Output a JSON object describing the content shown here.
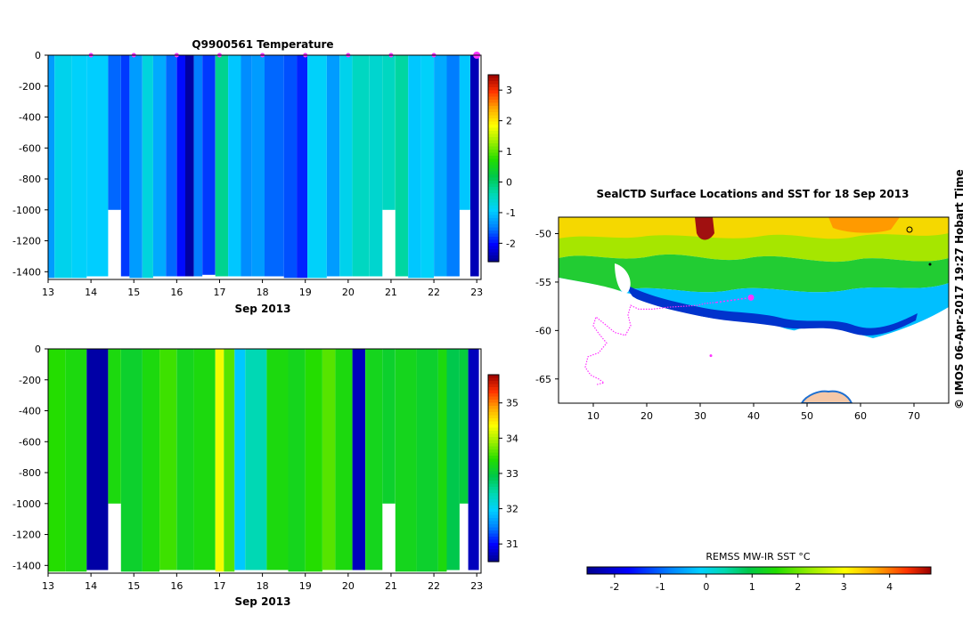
{
  "colors": {
    "colormap": [
      "#00008f",
      "#0000ff",
      "#0080ff",
      "#00d0ff",
      "#00d9b0",
      "#00c84a",
      "#22dd00",
      "#99ee00",
      "#ffff00",
      "#ffaa00",
      "#ff3300",
      "#990000"
    ],
    "land": "#f5c8a8",
    "track": "#ff33ff",
    "missing": "#ffffff"
  },
  "chart_data": [
    {
      "id": "temperature-section",
      "type": "heatmap",
      "title": "Q9900561  Temperature",
      "xlabel": "Sep 2013",
      "ylabel": "",
      "x_ticks": [
        "13",
        "14",
        "15",
        "16",
        "17",
        "18",
        "19",
        "20",
        "21",
        "22",
        "23"
      ],
      "xlim": [
        13.0,
        23.1
      ],
      "ylim": [
        -1450,
        0
      ],
      "y_ticks": [
        0,
        -200,
        -400,
        -600,
        -800,
        -1000,
        -1200,
        -1400
      ],
      "colorbar": {
        "min": -2.6,
        "max": 3.5,
        "ticks": [
          3,
          2,
          1,
          0,
          -1,
          -2
        ]
      },
      "profile_markers_x": [
        14.0,
        15.0,
        16.0,
        17.0,
        18.0,
        19.0,
        20.0,
        21.0,
        22.0,
        23.0
      ],
      "profiles": [
        {
          "x0": 13.0,
          "x1": 13.15,
          "value": -1.3,
          "bottom": -1440
        },
        {
          "x0": 13.15,
          "x1": 13.55,
          "value": -0.8,
          "bottom": -1440
        },
        {
          "x0": 13.55,
          "x1": 13.9,
          "value": -0.9,
          "bottom": -1440
        },
        {
          "x0": 13.9,
          "x1": 14.4,
          "value": -0.95,
          "bottom": -1430
        },
        {
          "x0": 14.4,
          "x1": 14.7,
          "value": -1.6,
          "bottom": -1000
        },
        {
          "x0": 14.7,
          "x1": 14.9,
          "value": -1.8,
          "bottom": -1430
        },
        {
          "x0": 14.9,
          "x1": 15.2,
          "value": -1.3,
          "bottom": -1440
        },
        {
          "x0": 15.2,
          "x1": 15.45,
          "value": -0.7,
          "bottom": -1440
        },
        {
          "x0": 15.45,
          "x1": 15.75,
          "value": -1.2,
          "bottom": -1430
        },
        {
          "x0": 15.75,
          "x1": 16.0,
          "value": -1.6,
          "bottom": -1430
        },
        {
          "x0": 16.0,
          "x1": 16.2,
          "value": -2.0,
          "bottom": -1430
        },
        {
          "x0": 16.2,
          "x1": 16.4,
          "value": -2.5,
          "bottom": -1430
        },
        {
          "x0": 16.4,
          "x1": 16.6,
          "value": -1.5,
          "bottom": -1430
        },
        {
          "x0": 16.6,
          "x1": 16.9,
          "value": -1.8,
          "bottom": -1420
        },
        {
          "x0": 16.9,
          "x1": 17.2,
          "value": -0.2,
          "bottom": -1430
        },
        {
          "x0": 17.2,
          "x1": 17.5,
          "value": -1.0,
          "bottom": -1430
        },
        {
          "x0": 17.5,
          "x1": 17.75,
          "value": -1.4,
          "bottom": -1430
        },
        {
          "x0": 17.75,
          "x1": 18.05,
          "value": -1.3,
          "bottom": -1430
        },
        {
          "x0": 18.05,
          "x1": 18.5,
          "value": -1.6,
          "bottom": -1430
        },
        {
          "x0": 18.5,
          "x1": 18.8,
          "value": -1.7,
          "bottom": -1440
        },
        {
          "x0": 18.8,
          "x1": 19.05,
          "value": -1.9,
          "bottom": -1440
        },
        {
          "x0": 19.05,
          "x1": 19.5,
          "value": -0.9,
          "bottom": -1440
        },
        {
          "x0": 19.5,
          "x1": 19.8,
          "value": -1.3,
          "bottom": -1430
        },
        {
          "x0": 19.8,
          "x1": 20.1,
          "value": -0.8,
          "bottom": -1430
        },
        {
          "x0": 20.1,
          "x1": 20.5,
          "value": -0.5,
          "bottom": -1430
        },
        {
          "x0": 20.5,
          "x1": 20.8,
          "value": -0.6,
          "bottom": -1430
        },
        {
          "x0": 20.8,
          "x1": 21.1,
          "value": -0.5,
          "bottom": -1000
        },
        {
          "x0": 21.1,
          "x1": 21.4,
          "value": -0.3,
          "bottom": -1430
        },
        {
          "x0": 21.4,
          "x1": 21.7,
          "value": -1.0,
          "bottom": -1440
        },
        {
          "x0": 21.7,
          "x1": 22.0,
          "value": -0.9,
          "bottom": -1440
        },
        {
          "x0": 22.0,
          "x1": 22.3,
          "value": -1.2,
          "bottom": -1430
        },
        {
          "x0": 22.3,
          "x1": 22.6,
          "value": -1.5,
          "bottom": -1430
        },
        {
          "x0": 22.6,
          "x1": 22.85,
          "value": -1.0,
          "bottom": -1000
        },
        {
          "x0": 22.85,
          "x1": 23.05,
          "value": -2.4,
          "bottom": -1430
        }
      ]
    },
    {
      "id": "salinity-section",
      "type": "heatmap",
      "title": "",
      "xlabel": "Sep 2013",
      "ylabel": "",
      "x_ticks": [
        "13",
        "14",
        "15",
        "16",
        "17",
        "18",
        "19",
        "20",
        "21",
        "22",
        "23"
      ],
      "xlim": [
        13.0,
        23.1
      ],
      "ylim": [
        -1450,
        0
      ],
      "y_ticks": [
        0,
        -200,
        -400,
        -600,
        -800,
        -1000,
        -1200,
        -1400
      ],
      "colorbar": {
        "min": 30.5,
        "max": 35.8,
        "ticks": [
          35,
          34,
          33,
          32,
          31
        ]
      },
      "profiles": [
        {
          "x0": 13.0,
          "x1": 13.4,
          "value": 33.4,
          "bottom": -1440
        },
        {
          "x0": 13.4,
          "x1": 13.9,
          "value": 33.3,
          "bottom": -1440
        },
        {
          "x0": 13.9,
          "x1": 14.4,
          "value": 30.6,
          "bottom": -1430
        },
        {
          "x0": 14.4,
          "x1": 14.7,
          "value": 33.3,
          "bottom": -1000
        },
        {
          "x0": 14.7,
          "x1": 15.2,
          "value": 33.1,
          "bottom": -1440
        },
        {
          "x0": 15.2,
          "x1": 15.6,
          "value": 33.3,
          "bottom": -1440
        },
        {
          "x0": 15.6,
          "x1": 16.0,
          "value": 33.5,
          "bottom": -1430
        },
        {
          "x0": 16.0,
          "x1": 16.4,
          "value": 33.2,
          "bottom": -1430
        },
        {
          "x0": 16.4,
          "x1": 16.9,
          "value": 33.3,
          "bottom": -1430
        },
        {
          "x0": 16.9,
          "x1": 17.1,
          "value": 34.3,
          "bottom": -1440
        },
        {
          "x0": 17.1,
          "x1": 17.35,
          "value": 33.6,
          "bottom": -1440
        },
        {
          "x0": 17.35,
          "x1": 17.6,
          "value": 31.9,
          "bottom": -1430
        },
        {
          "x0": 17.6,
          "x1": 18.1,
          "value": 32.4,
          "bottom": -1430
        },
        {
          "x0": 18.1,
          "x1": 18.6,
          "value": 33.3,
          "bottom": -1430
        },
        {
          "x0": 18.6,
          "x1": 19.0,
          "value": 33.2,
          "bottom": -1440
        },
        {
          "x0": 19.0,
          "x1": 19.4,
          "value": 33.4,
          "bottom": -1440
        },
        {
          "x0": 19.4,
          "x1": 19.7,
          "value": 33.6,
          "bottom": -1430
        },
        {
          "x0": 19.7,
          "x1": 20.1,
          "value": 33.3,
          "bottom": -1430
        },
        {
          "x0": 20.1,
          "x1": 20.4,
          "value": 30.7,
          "bottom": -1430
        },
        {
          "x0": 20.4,
          "x1": 20.8,
          "value": 33.2,
          "bottom": -1430
        },
        {
          "x0": 20.8,
          "x1": 21.1,
          "value": 33.1,
          "bottom": -1000
        },
        {
          "x0": 21.1,
          "x1": 21.6,
          "value": 33.2,
          "bottom": -1440
        },
        {
          "x0": 21.6,
          "x1": 22.1,
          "value": 33.1,
          "bottom": -1440
        },
        {
          "x0": 22.1,
          "x1": 22.3,
          "value": 33.3,
          "bottom": -1440
        },
        {
          "x0": 22.3,
          "x1": 22.6,
          "value": 32.9,
          "bottom": -1430
        },
        {
          "x0": 22.6,
          "x1": 22.8,
          "value": 33.0,
          "bottom": -1000
        },
        {
          "x0": 22.8,
          "x1": 23.05,
          "value": 30.7,
          "bottom": -1430
        }
      ]
    },
    {
      "id": "sst-map",
      "type": "heatmap",
      "title": "SealCTD Surface Locations and SST for 18 Sep 2013",
      "xlabel": "",
      "ylabel": "",
      "x_ticks": [
        10,
        20,
        30,
        40,
        50,
        60,
        70
      ],
      "y_ticks": [
        -50,
        -55,
        -60,
        -65
      ],
      "xlim": [
        3.5,
        76.5
      ],
      "ylim": [
        -67.5,
        -48.3
      ],
      "current_position": {
        "lon": 39.5,
        "lat": -56.6
      },
      "track": [
        [
          33,
          -57.1
        ],
        [
          31,
          -57.2
        ],
        [
          29.5,
          -57.4
        ],
        [
          27,
          -57.5
        ],
        [
          24,
          -57.6
        ],
        [
          21,
          -57.8
        ],
        [
          18.5,
          -57.8
        ],
        [
          17,
          -57.4
        ],
        [
          16.5,
          -58.4
        ],
        [
          17,
          -59.5
        ],
        [
          16,
          -60.5
        ],
        [
          14,
          -60.2
        ],
        [
          12.5,
          -59.5
        ],
        [
          10.5,
          -58.6
        ],
        [
          10,
          -59.5
        ],
        [
          11,
          -60.3
        ],
        [
          12.5,
          -61.3
        ],
        [
          11,
          -62.3
        ],
        [
          9,
          -62.7
        ],
        [
          8.5,
          -63.8
        ],
        [
          9.5,
          -64.6
        ],
        [
          11,
          -65.0
        ],
        [
          12,
          -65.4
        ],
        [
          10.5,
          -65.6
        ]
      ],
      "colorbar": {
        "label": "REMSS MW-IR SST °C",
        "min": -2.6,
        "max": 4.9,
        "ticks": [
          "-2",
          "-1",
          "0",
          "1",
          "2",
          "3",
          "4"
        ]
      }
    }
  ],
  "credit_text": "© IMOS 06-Apr-2017 19:27 Hobart Time"
}
